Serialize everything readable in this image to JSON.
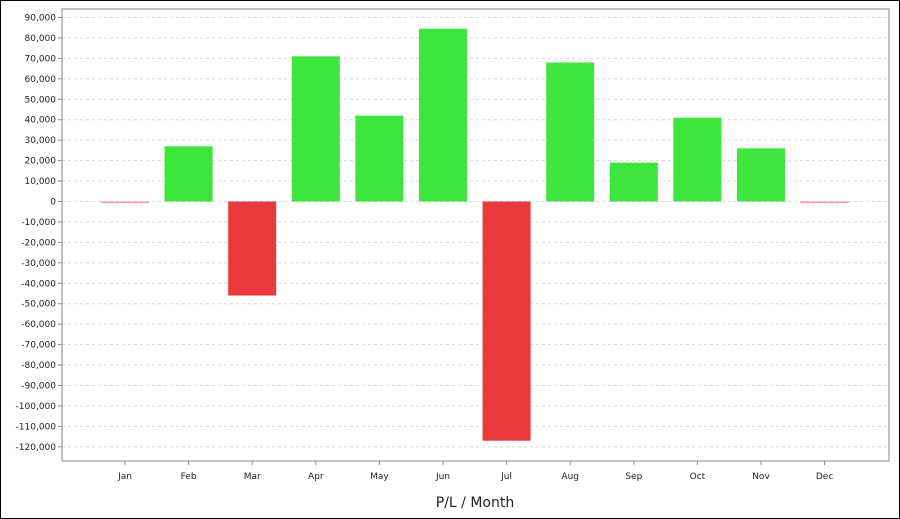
{
  "chart_data": {
    "type": "bar",
    "xlabel": "P/L / Month",
    "categories": [
      "Jan",
      "Feb",
      "Mar",
      "Apr",
      "May",
      "Jun",
      "Jul",
      "Aug",
      "Sep",
      "Oct",
      "Nov",
      "Dec"
    ],
    "values": [
      -800,
      27000,
      -46000,
      71000,
      42000,
      84500,
      -117000,
      68000,
      19000,
      41000,
      26000,
      -800
    ],
    "ylim": [
      -125000,
      90000
    ],
    "yticks": [
      90000,
      80000,
      70000,
      60000,
      50000,
      40000,
      30000,
      20000,
      10000,
      0,
      -10000,
      -20000,
      -30000,
      -40000,
      -50000,
      -60000,
      -70000,
      -80000,
      -90000,
      -100000,
      -110000,
      -120000
    ],
    "ytick_labels": [
      "90,000",
      "80,000",
      "70,000",
      "60,000",
      "50,000",
      "40,000",
      "30,000",
      "20,000",
      "10,000",
      "0",
      "-10,000",
      "-20,000",
      "-30,000",
      "-40,000",
      "-50,000",
      "-60,000",
      "-70,000",
      "-80,000",
      "-90,000",
      "-100,000",
      "-110,000",
      "-120,000"
    ],
    "grid": true,
    "colors": {
      "positive": "#3de63d",
      "negative": "#e8393d",
      "near_zero": "#f0a0a0",
      "grid": "#d8d8d8",
      "axis": "#888888"
    }
  }
}
